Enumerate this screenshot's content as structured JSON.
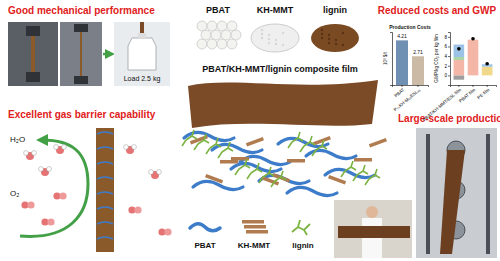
{
  "chart_data": [
    {
      "type": "bar",
      "title": "Production Costs",
      "y_label": "10³ $/t",
      "categories": [
        "PBAT",
        "P₇₀KH-M₁₅ESL₁₅"
      ],
      "values": [
        4.21,
        2.71
      ],
      "colors": [
        "#6f8fb3",
        "#cbbba6"
      ],
      "ylim": [
        0,
        5
      ],
      "data_labels": true,
      "tick_labels": "x"
    },
    {
      "type": "bar",
      "stacked": true,
      "y_label": "GWP/kg CO₂ per kg film",
      "categories": [
        "PBAT/KH-MMT/ESL film",
        "PBAT film",
        "PE film"
      ],
      "series": [
        {
          "color": "#9e9e9e",
          "values": [
            -0.9,
            0,
            0
          ]
        },
        {
          "color": "#f4b6a6",
          "values": [
            3.2,
            7.4,
            0
          ]
        },
        {
          "color": "#f2d98a",
          "values": [
            0,
            0,
            1.8
          ]
        },
        {
          "color": "#a8d5a2",
          "values": [
            0.6,
            0,
            0
          ]
        },
        {
          "color": "#9cc3e6",
          "values": [
            2.6,
            0,
            0.5
          ]
        },
        {
          "type": "scatter",
          "marker": "circle",
          "color": "#000000",
          "values": [
            5.5,
            7.6,
            2.4
          ]
        }
      ],
      "ylim": [
        -2,
        9
      ],
      "yticks": [
        0,
        2,
        4,
        6,
        8
      ]
    }
  ],
  "diagram": {
    "mechanical": {
      "title": "Good mechanical performance",
      "photo_text": "Load 2.5 kg"
    },
    "materials": {
      "labels": [
        "PBAT",
        "KH-MMT",
        "lignin"
      ],
      "product": "PBAT/KH-MMT/lignin composite film"
    },
    "costs": {
      "title": "Reduced costs and GWP"
    },
    "barrier": {
      "title": "Excellent gas barrier capability",
      "molecules": [
        "H₂O",
        "O₂"
      ]
    },
    "structure_legend": [
      "PBAT",
      "KH-MMT",
      "lignin"
    ],
    "production": {
      "title": "Large-scale production"
    }
  }
}
